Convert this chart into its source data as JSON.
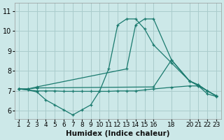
{
  "xlabel": "Humidex (Indice chaleur)",
  "background_color": "#cce8e8",
  "line_color": "#1a7a6e",
  "grid_color": "#aacccc",
  "xlim": [
    0.5,
    23.5
  ],
  "ylim": [
    5.6,
    11.4
  ],
  "xticks": [
    1,
    2,
    3,
    4,
    5,
    6,
    7,
    8,
    9,
    10,
    11,
    12,
    13,
    14,
    15,
    16,
    18,
    20,
    21,
    22,
    23
  ],
  "yticks": [
    6,
    7,
    8,
    9,
    10,
    11
  ],
  "lines": [
    {
      "x": [
        1,
        2,
        3,
        4,
        5,
        6,
        7,
        8,
        9,
        10,
        11,
        12,
        13,
        14,
        15,
        16,
        18,
        20,
        21,
        22,
        23
      ],
      "y": [
        7.1,
        7.05,
        6.95,
        6.55,
        6.3,
        6.05,
        5.8,
        6.05,
        6.3,
        7.0,
        8.1,
        10.3,
        10.6,
        10.6,
        10.1,
        9.3,
        8.4,
        7.5,
        7.25,
        7.0,
        6.75
      ]
    },
    {
      "x": [
        1,
        2,
        3,
        4,
        5,
        6,
        7,
        8,
        9,
        10,
        11,
        12,
        13,
        14,
        15,
        16,
        18,
        20,
        21,
        22,
        23
      ],
      "y": [
        7.1,
        7.05,
        7.0,
        7.0,
        7.0,
        6.98,
        6.98,
        6.98,
        6.98,
        6.98,
        6.98,
        7.0,
        7.0,
        7.0,
        7.05,
        7.1,
        7.18,
        7.25,
        7.25,
        6.85,
        6.72
      ]
    },
    {
      "x": [
        1,
        2,
        3,
        16,
        18,
        20,
        21,
        22,
        23
      ],
      "y": [
        7.1,
        7.1,
        7.15,
        7.2,
        8.55,
        7.5,
        7.3,
        7.0,
        6.75
      ]
    },
    {
      "x": [
        1,
        2,
        3,
        13,
        14,
        15,
        16,
        18,
        20,
        21,
        22,
        23
      ],
      "y": [
        7.1,
        7.1,
        7.2,
        8.1,
        10.3,
        10.6,
        10.6,
        8.55,
        7.5,
        7.3,
        7.0,
        6.75
      ]
    }
  ]
}
